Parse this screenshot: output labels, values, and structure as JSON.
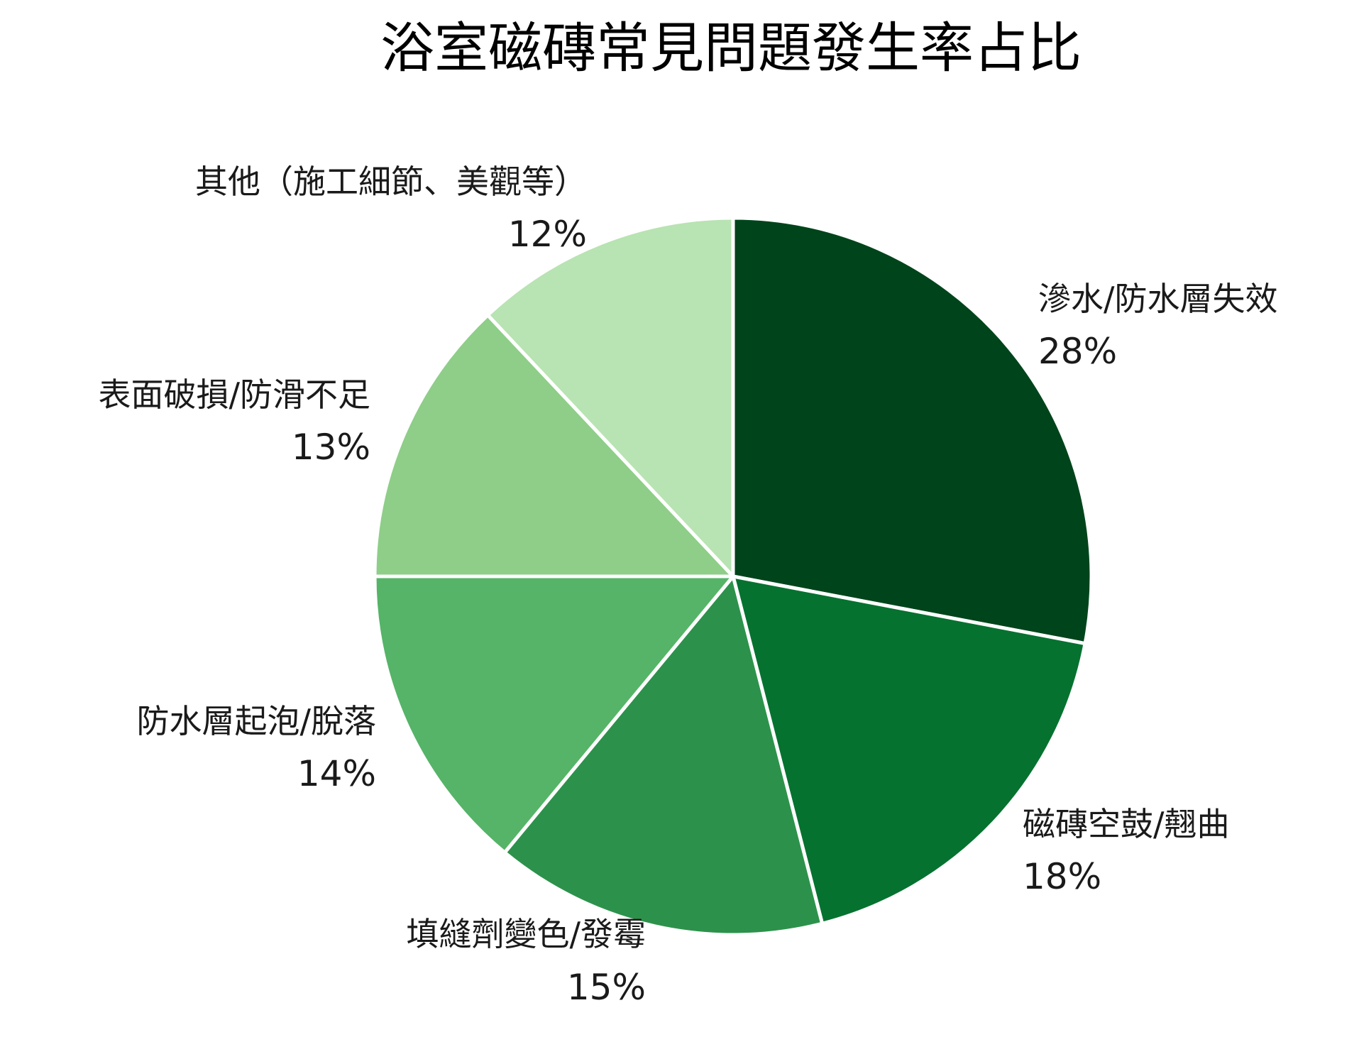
{
  "chart_data": {
    "type": "pie",
    "title": "浴室磁磚常見問題發生率占比",
    "categories": [
      "滲水/防水層失效",
      "磁磚空鼓/翹曲",
      "填縫劑變色/發霉",
      "防水層起泡/脫落",
      "表面破損/防滑不足",
      "其他（施工細節、美觀等）"
    ],
    "values": [
      28,
      18,
      15,
      14,
      13,
      12
    ],
    "value_labels": [
      "28%",
      "18%",
      "15%",
      "14%",
      "13%",
      "12%"
    ],
    "unit": "%",
    "start_angle": "12 o'clock",
    "direction": "clockwise",
    "colors": [
      "#00441b",
      "#067230",
      "#2c924b",
      "#55b467",
      "#8ece88",
      "#b8e3b2"
    ],
    "slice_border_color": "#ffffff",
    "legend": "none, labels placed outside slices"
  }
}
